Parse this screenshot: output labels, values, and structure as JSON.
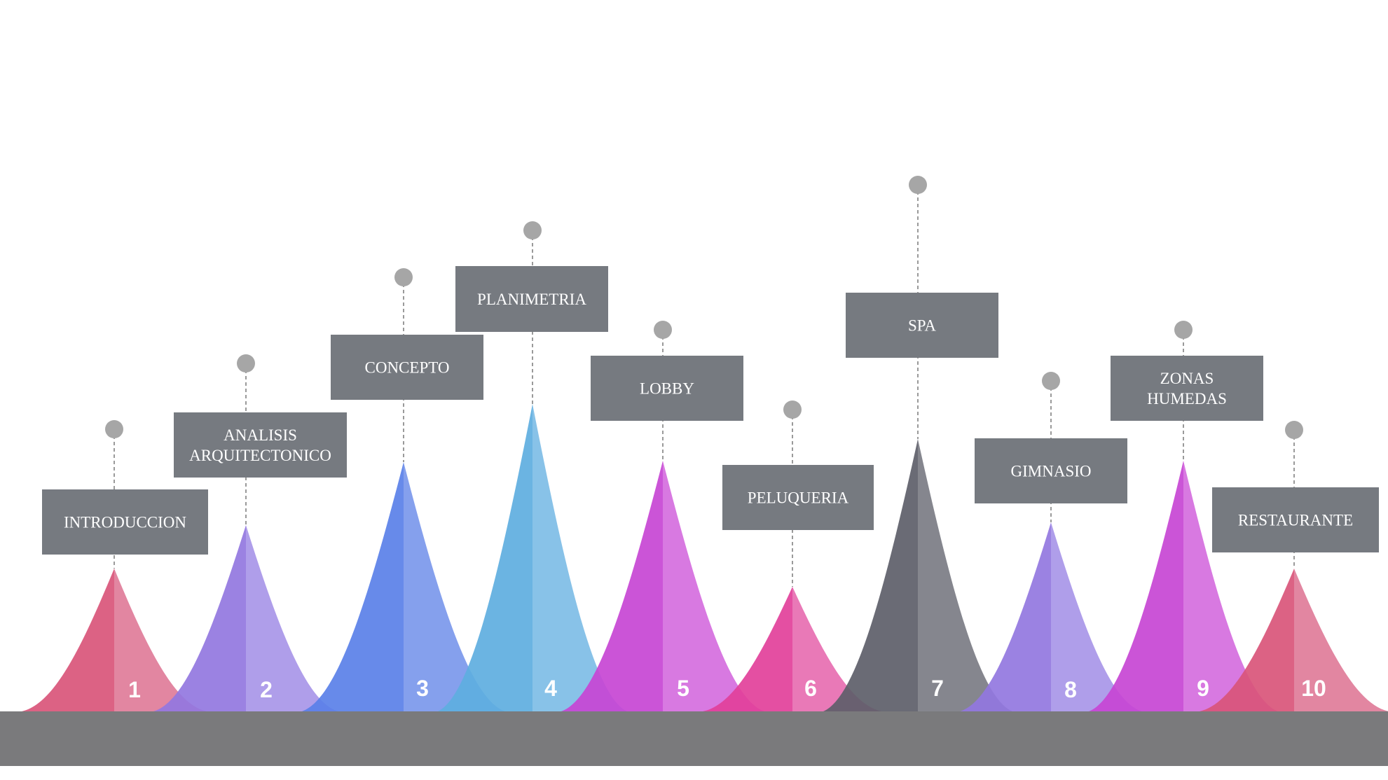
{
  "diagram": {
    "base_color": "#7a7a7c",
    "label_color": "#767a80",
    "pin_color": "#a6a6a6",
    "items": [
      {
        "number": "1",
        "label_lines": [
          "INTRODUCCION"
        ],
        "color_dark": "#d9557a",
        "color_light": "#e07c99"
      },
      {
        "number": "2",
        "label_lines": [
          "ANALISIS",
          "ARQUITECTONICO"
        ],
        "color_dark": "#9277e0",
        "color_light": "#a896e8"
      },
      {
        "number": "3",
        "label_lines": [
          "CONCEPTO"
        ],
        "color_dark": "#5a80e8",
        "color_light": "#7b98ec"
      },
      {
        "number": "4",
        "label_lines": [
          "PLANIMETRIA"
        ],
        "color_dark": "#5eaee0",
        "color_light": "#7ebde6"
      },
      {
        "number": "5",
        "label_lines": [
          "LOBBY"
        ],
        "color_dark": "#c745d4",
        "color_light": "#d56ede"
      },
      {
        "number": "6",
        "label_lines": [
          "PELUQUERIA"
        ],
        "color_dark": "#e2409a",
        "color_light": "#e76eb1"
      },
      {
        "number": "7",
        "label_lines": [
          "SPA"
        ],
        "color_dark": "#5d5e69",
        "color_light": "#7b7c84"
      },
      {
        "number": "8",
        "label_lines": [
          "GIMNASIO"
        ],
        "color_dark": "#9277e0",
        "color_light": "#a896e8"
      },
      {
        "number": "9",
        "label_lines": [
          "ZONAS",
          "HUMEDAS"
        ],
        "color_dark": "#c745d4",
        "color_light": "#d56ede"
      },
      {
        "number": "10",
        "label_lines": [
          "RESTAURANTE"
        ],
        "color_dark": "#d9557a",
        "color_light": "#e07c99"
      }
    ]
  }
}
